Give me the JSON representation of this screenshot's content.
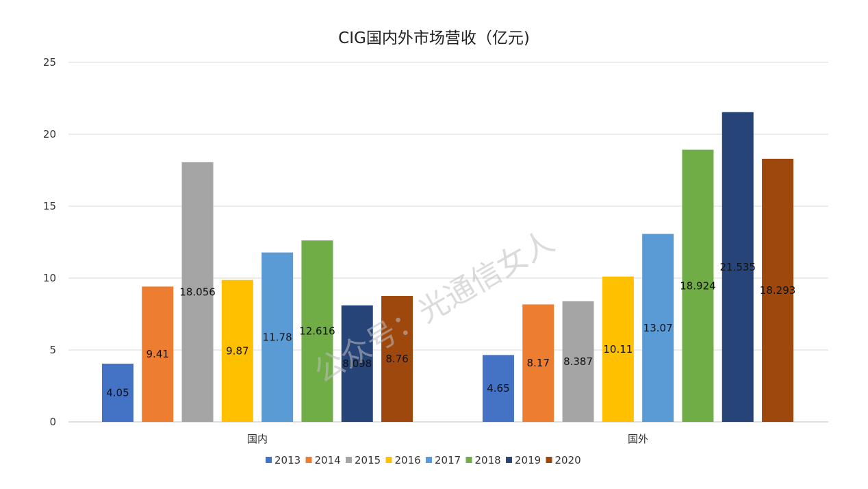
{
  "chart_data": {
    "type": "bar",
    "title": "CIG国内外市场营收（亿元)",
    "categories": [
      "国内",
      "国外"
    ],
    "ylim": [
      0,
      25
    ],
    "yticks": [
      0,
      5,
      10,
      15,
      20,
      25
    ],
    "grid": true,
    "legend_position": "bottom",
    "series": [
      {
        "name": "2013",
        "values": [
          4.05,
          4.65
        ],
        "labels": [
          "4.05",
          "4.65"
        ],
        "color": "#4472C4"
      },
      {
        "name": "2014",
        "values": [
          9.41,
          8.17
        ],
        "labels": [
          "9.41",
          "8.17"
        ],
        "color": "#ED7D31"
      },
      {
        "name": "2015",
        "values": [
          18.056,
          8.387
        ],
        "labels": [
          "18.056",
          "8.387"
        ],
        "color": "#A5A5A5"
      },
      {
        "name": "2016",
        "values": [
          9.87,
          10.11
        ],
        "labels": [
          "9.87",
          "10.11"
        ],
        "color": "#FFC000"
      },
      {
        "name": "2017",
        "values": [
          11.78,
          13.07
        ],
        "labels": [
          "11.78",
          "13.07"
        ],
        "color": "#5B9BD5"
      },
      {
        "name": "2018",
        "values": [
          12.616,
          18.924
        ],
        "labels": [
          "12.616",
          "18.924"
        ],
        "color": "#70AD47"
      },
      {
        "name": "2019",
        "values": [
          8.098,
          21.535
        ],
        "labels": [
          "8.098",
          "21.535"
        ],
        "color": "#264478"
      },
      {
        "name": "2020",
        "values": [
          8.76,
          18.293
        ],
        "labels": [
          "8.76",
          "18.293"
        ],
        "color": "#9E480E"
      }
    ]
  },
  "watermark": {
    "text": "公众号：光通信女人"
  }
}
